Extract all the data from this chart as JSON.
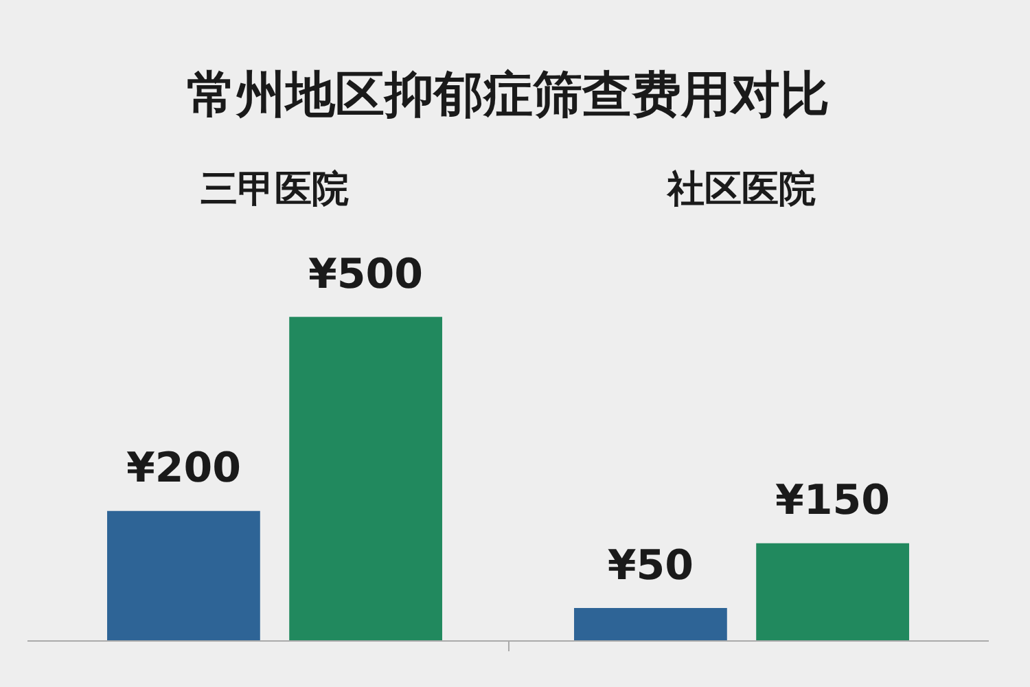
{
  "chart_data": {
    "type": "bar",
    "title": "常州地区抑郁症筛查费用对比",
    "categories": [
      "三甲医院",
      "社区医院"
    ],
    "series": [
      {
        "color": "#2e6496",
        "values": [
          200,
          50
        ],
        "value_labels": [
          "¥200",
          "¥50"
        ]
      },
      {
        "color": "#21895e",
        "values": [
          500,
          150
        ],
        "value_labels": [
          "¥500",
          "¥150"
        ]
      }
    ],
    "grid": false,
    "legend": false,
    "tick_labels": "x"
  }
}
